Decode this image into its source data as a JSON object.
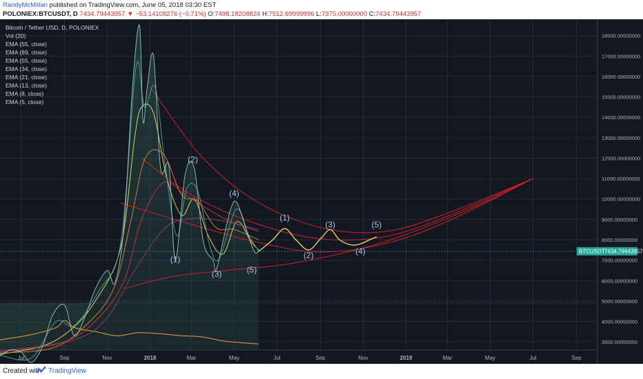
{
  "header": {
    "author": "RandyMcMillan",
    "published": "published on TradingView.com, June 05, 2018 03:30 EST",
    "symbol": "POLONIEX:BTCUSDT, D",
    "last": "7434.79443957",
    "change": "−53.14108276 (−0.71%)",
    "o_label": "O:",
    "o_value": "7498.18208824",
    "h_label": "H:",
    "h_value": "7512.69999996",
    "l_label": "L:",
    "l_value": "7375.00000000",
    "c_label": "C:",
    "c_value": "7434.79443957"
  },
  "legend": [
    "Bitcoin / Tether USD, D, POLONIEX",
    "Vol (20)",
    "EMA (55, close)",
    "EMA (89, close)",
    "EMA (55, close)",
    "EMA (34, close)",
    "EMA (21, close)",
    "EMA (13, close)",
    "EMA (8, close)",
    "EMA (5, close)"
  ],
  "footer": {
    "created": "Created with",
    "brand": "TradingView"
  },
  "chart_data": {
    "type": "line",
    "title": "Bitcoin / Tether USD, D, POLONIEX",
    "price_label": "BTCUSDT",
    "last_price": 7434.79443957,
    "ylim": [
      2600,
      18800
    ],
    "y_ticks": [
      {
        "value": 3000,
        "label": "3000.00000000"
      },
      {
        "value": 4000,
        "label": "4000.00000000"
      },
      {
        "value": 5000,
        "label": "5000.00000000"
      },
      {
        "value": 6000,
        "label": "6000.00000000"
      },
      {
        "value": 7000,
        "label": "7000.00000000"
      },
      {
        "value": 8000,
        "label": "8000.00000000"
      },
      {
        "value": 9000,
        "label": "9000.00000000"
      },
      {
        "value": 10000,
        "label": "10000.00000000"
      },
      {
        "value": 11000,
        "label": "11000.00000000"
      },
      {
        "value": 12000,
        "label": "12000.00000000"
      },
      {
        "value": 13000,
        "label": "13000.00000000"
      },
      {
        "value": 14000,
        "label": "14000.00000000"
      },
      {
        "value": 15000,
        "label": "15000.00000000"
      },
      {
        "value": 16000,
        "label": "16000.00000000"
      },
      {
        "value": 17000,
        "label": "17000.00000000"
      },
      {
        "value": 18000,
        "label": "18000.00000000"
      }
    ],
    "x_ticks": [
      {
        "date": "2017-07-01",
        "label": "Jul"
      },
      {
        "date": "2017-09-01",
        "label": "Sep"
      },
      {
        "date": "2017-11-01",
        "label": "Nov"
      },
      {
        "date": "2018-01-01",
        "label": "2018"
      },
      {
        "date": "2018-03-01",
        "label": "Mar"
      },
      {
        "date": "2018-05-01",
        "label": "May"
      },
      {
        "date": "2018-07-01",
        "label": "Jul"
      },
      {
        "date": "2018-09-01",
        "label": "Sep"
      },
      {
        "date": "2018-11-01",
        "label": "Nov"
      },
      {
        "date": "2019-01-01",
        "label": "2019"
      },
      {
        "date": "2019-03-01",
        "label": "Mar"
      },
      {
        "date": "2019-05-01",
        "label": "May"
      },
      {
        "date": "2019-07-01",
        "label": "Jul"
      },
      {
        "date": "2019-09-01",
        "label": "Sep"
      }
    ],
    "price": [
      [
        "2017-06-01",
        2300
      ],
      [
        "2017-06-15",
        2600
      ],
      [
        "2017-07-01",
        2500
      ],
      [
        "2017-07-16",
        2000
      ],
      [
        "2017-08-01",
        2800
      ],
      [
        "2017-08-15",
        4300
      ],
      [
        "2017-09-01",
        4800
      ],
      [
        "2017-09-15",
        3300
      ],
      [
        "2017-10-01",
        4300
      ],
      [
        "2017-10-15",
        5600
      ],
      [
        "2017-11-01",
        6500
      ],
      [
        "2017-11-12",
        5900
      ],
      [
        "2017-11-25",
        8800
      ],
      [
        "2017-12-07",
        15500
      ],
      [
        "2017-12-17",
        18500
      ],
      [
        "2017-12-22",
        13800
      ],
      [
        "2017-12-28",
        15500
      ],
      [
        "2018-01-06",
        17000
      ],
      [
        "2018-01-16",
        11500
      ],
      [
        "2018-01-28",
        11600
      ],
      [
        "2018-02-06",
        7000
      ],
      [
        "2018-02-20",
        11200
      ],
      [
        "2018-03-05",
        11500
      ],
      [
        "2018-03-18",
        7900
      ],
      [
        "2018-04-01",
        7000
      ],
      [
        "2018-04-06",
        6600
      ],
      [
        "2018-04-25",
        9400
      ],
      [
        "2018-05-05",
        9800
      ],
      [
        "2018-05-20",
        8300
      ],
      [
        "2018-05-30",
        7400
      ],
      [
        "2018-06-05",
        7435
      ]
    ],
    "projection": [
      [
        "2018-06-05",
        7435
      ],
      [
        "2018-06-25",
        8000
      ],
      [
        "2018-07-12",
        8550
      ],
      [
        "2018-07-28",
        8000
      ],
      [
        "2018-08-15",
        7500
      ],
      [
        "2018-09-01",
        8050
      ],
      [
        "2018-09-15",
        8500
      ],
      [
        "2018-09-28",
        8000
      ],
      [
        "2018-10-15",
        7750
      ],
      [
        "2018-10-28",
        7800
      ],
      [
        "2018-11-10",
        8000
      ],
      [
        "2018-11-20",
        8150
      ]
    ],
    "ema_series": [
      {
        "color": "#f0e66a",
        "points": [
          [
            "2017-06-01",
            2400
          ],
          [
            "2017-08-01",
            2800
          ],
          [
            "2017-09-10",
            3600
          ],
          [
            "2017-10-15",
            5000
          ],
          [
            "2017-11-20",
            7600
          ],
          [
            "2017-12-10",
            13000
          ],
          [
            "2017-12-20",
            14500
          ],
          [
            "2018-01-06",
            14200
          ],
          [
            "2018-01-25",
            11000
          ],
          [
            "2018-02-15",
            9200
          ],
          [
            "2018-03-05",
            10000
          ],
          [
            "2018-03-25",
            8200
          ],
          [
            "2018-04-15",
            7300
          ],
          [
            "2018-05-05",
            8900
          ],
          [
            "2018-05-25",
            7900
          ],
          [
            "2018-06-05",
            7500
          ]
        ]
      },
      {
        "color": "#e8843a",
        "points": [
          [
            "2017-06-01",
            2450
          ],
          [
            "2017-08-15",
            2700
          ],
          [
            "2017-10-01",
            3800
          ],
          [
            "2017-11-10",
            5600
          ],
          [
            "2017-12-05",
            9000
          ],
          [
            "2017-12-25",
            12000
          ],
          [
            "2018-01-20",
            12200
          ],
          [
            "2018-02-15",
            10200
          ],
          [
            "2018-03-10",
            9900
          ],
          [
            "2018-04-05",
            8600
          ],
          [
            "2018-05-01",
            8500
          ],
          [
            "2018-06-05",
            8000
          ]
        ]
      },
      {
        "color": "#d63a3a",
        "points": [
          [
            "2017-06-01",
            2500
          ],
          [
            "2017-09-01",
            3000
          ],
          [
            "2017-10-20",
            4200
          ],
          [
            "2017-11-25",
            6000
          ],
          [
            "2017-12-20",
            9000
          ],
          [
            "2018-01-20",
            10800
          ],
          [
            "2018-02-20",
            10200
          ],
          [
            "2018-03-20",
            9600
          ],
          [
            "2018-04-20",
            9000
          ],
          [
            "2018-06-05",
            8400
          ]
        ]
      },
      {
        "color": "#9a3d6e",
        "points": [
          [
            "2017-06-01",
            2550
          ],
          [
            "2017-09-15",
            3100
          ],
          [
            "2017-11-01",
            4200
          ],
          [
            "2017-12-10",
            6500
          ],
          [
            "2018-01-20",
            8500
          ],
          [
            "2018-02-20",
            9000
          ],
          [
            "2018-04-01",
            9000
          ],
          [
            "2018-06-05",
            8500
          ]
        ]
      },
      {
        "color": "#4ea89a",
        "points": [
          [
            "2017-06-01",
            2350
          ],
          [
            "2017-07-15",
            2200
          ],
          [
            "2017-08-20",
            4000
          ],
          [
            "2017-09-15",
            3800
          ],
          [
            "2017-10-20",
            5500
          ],
          [
            "2017-11-20",
            7800
          ],
          [
            "2017-12-12",
            16500
          ],
          [
            "2017-12-24",
            14500
          ],
          [
            "2018-01-08",
            15500
          ],
          [
            "2018-01-22",
            11800
          ],
          [
            "2018-02-08",
            8200
          ],
          [
            "2018-02-22",
            10500
          ],
          [
            "2018-03-10",
            10400
          ],
          [
            "2018-03-28",
            7600
          ],
          [
            "2018-04-10",
            7100
          ],
          [
            "2018-05-04",
            9500
          ],
          [
            "2018-05-22",
            8200
          ],
          [
            "2018-06-05",
            7450
          ]
        ]
      }
    ],
    "wave_labels": [
      {
        "label": "(1)",
        "date": "2018-02-06",
        "y": 6900
      },
      {
        "label": "(2)",
        "date": "2018-03-03",
        "y": 11800
      },
      {
        "label": "(3)",
        "date": "2018-04-06",
        "y": 6200
      },
      {
        "label": "(4)",
        "date": "2018-05-01",
        "y": 10150
      },
      {
        "label": "(5)",
        "date": "2018-05-26",
        "y": 6400
      },
      {
        "label": "(1)",
        "date": "2018-07-12",
        "y": 8950
      },
      {
        "label": "(2)",
        "date": "2018-08-15",
        "y": 7100
      },
      {
        "label": "(3)",
        "date": "2018-09-15",
        "y": 8600
      },
      {
        "label": "(4)",
        "date": "2018-10-28",
        "y": 7300
      },
      {
        "label": "(5)",
        "date": "2018-11-20",
        "y": 8600
      }
    ],
    "arcs": [
      {
        "points": [
          [
            "2018-01-01",
            15500
          ],
          [
            "2018-03-15",
            12100
          ],
          [
            "2018-06-01",
            9900
          ],
          [
            "2018-09-01",
            8600
          ],
          [
            "2018-12-01",
            8400
          ],
          [
            "2019-03-01",
            9300
          ],
          [
            "2019-07-01",
            11000
          ]
        ]
      },
      {
        "points": [
          [
            "2017-12-20",
            12000
          ],
          [
            "2018-03-01",
            10200
          ],
          [
            "2018-06-01",
            8800
          ],
          [
            "2018-09-01",
            8050
          ],
          [
            "2018-12-01",
            8150
          ],
          [
            "2019-03-01",
            9150
          ],
          [
            "2019-07-01",
            11000
          ]
        ]
      },
      {
        "points": [
          [
            "2017-11-20",
            9800
          ],
          [
            "2018-02-15",
            8900
          ],
          [
            "2018-06-01",
            7900
          ],
          [
            "2018-09-01",
            7400
          ],
          [
            "2018-12-01",
            7800
          ],
          [
            "2019-03-01",
            8900
          ],
          [
            "2019-07-01",
            11000
          ]
        ]
      },
      {
        "points": [
          [
            "2017-11-25",
            5600
          ],
          [
            "2018-02-01",
            6200
          ],
          [
            "2018-04-20",
            6500
          ],
          [
            "2018-08-01",
            6900
          ],
          [
            "2018-12-01",
            7900
          ],
          [
            "2019-04-01",
            9500
          ],
          [
            "2019-07-01",
            11000
          ]
        ]
      }
    ],
    "arc_apex": [
      "2019-07-01",
      11000
    ],
    "volume_baseline": 4900,
    "volume_band": [
      [
        "2017-06-01",
        3100
      ],
      [
        "2017-07-15",
        3350
      ],
      [
        "2017-08-20",
        3700
      ],
      [
        "2017-09-01",
        4050
      ],
      [
        "2017-09-15",
        3700
      ],
      [
        "2017-10-15",
        3500
      ],
      [
        "2017-11-15",
        3300
      ],
      [
        "2017-12-15",
        3450
      ],
      [
        "2018-01-15",
        3400
      ],
      [
        "2018-02-15",
        3300
      ],
      [
        "2018-03-15",
        3250
      ],
      [
        "2018-04-15",
        3050
      ],
      [
        "2018-05-15",
        2950
      ],
      [
        "2018-06-05",
        2900
      ]
    ],
    "colors": {
      "background": "#131722",
      "grid": "#262b38",
      "axis_text": "#b2b5be",
      "arc": "#c42026",
      "wave_label": "#a6c3e6",
      "projection": "#e8e26a",
      "price_tag": "#26a69a",
      "volume": "#f0a040"
    }
  }
}
